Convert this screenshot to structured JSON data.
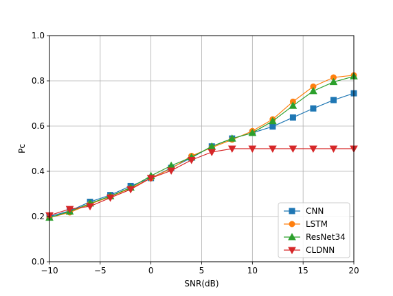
{
  "chart_data": {
    "type": "line",
    "title": "",
    "xlabel": "SNR(dB)",
    "ylabel": "Pc",
    "xlim": [
      -10,
      20
    ],
    "ylim": [
      0,
      1.0
    ],
    "xticks": [
      -10,
      -5,
      0,
      5,
      10,
      15,
      20
    ],
    "xtick_labels": [
      "−10",
      "−5",
      "0",
      "5",
      "10",
      "15",
      "20"
    ],
    "yticks": [
      0,
      0.2,
      0.4,
      0.6,
      0.8,
      1.0
    ],
    "ytick_labels": [
      "0.0",
      "0.2",
      "0.4",
      "0.6",
      "0.8",
      "1.0"
    ],
    "grid": true,
    "legend_position": "lower-right",
    "x": [
      -10,
      -8,
      -6,
      -4,
      -2,
      0,
      2,
      4,
      6,
      8,
      10,
      12,
      14,
      16,
      18,
      20
    ],
    "series": [
      {
        "name": "CNN",
        "color": "#1f77b4",
        "marker": "square",
        "values": [
          0.2,
          0.225,
          0.265,
          0.295,
          0.335,
          0.37,
          0.415,
          0.46,
          0.51,
          0.545,
          0.57,
          0.598,
          0.638,
          0.678,
          0.715,
          0.745
        ]
      },
      {
        "name": "LSTM",
        "color": "#ff7f0e",
        "marker": "circle",
        "values": [
          0.195,
          0.218,
          0.255,
          0.288,
          0.325,
          0.37,
          0.412,
          0.468,
          0.505,
          0.54,
          0.578,
          0.63,
          0.708,
          0.775,
          0.815,
          0.825
        ]
      },
      {
        "name": "ResNet34",
        "color": "#2ca02c",
        "marker": "triangle-up",
        "values": [
          0.195,
          0.222,
          0.258,
          0.29,
          0.328,
          0.38,
          0.425,
          0.462,
          0.51,
          0.545,
          0.57,
          0.622,
          0.69,
          0.755,
          0.795,
          0.82
        ]
      },
      {
        "name": "CLDNN",
        "color": "#d62728",
        "marker": "triangle-down",
        "values": [
          0.205,
          0.233,
          0.245,
          0.283,
          0.32,
          0.37,
          0.403,
          0.45,
          0.485,
          0.5,
          0.5,
          0.5,
          0.5,
          0.5,
          0.5,
          0.5
        ]
      }
    ]
  }
}
